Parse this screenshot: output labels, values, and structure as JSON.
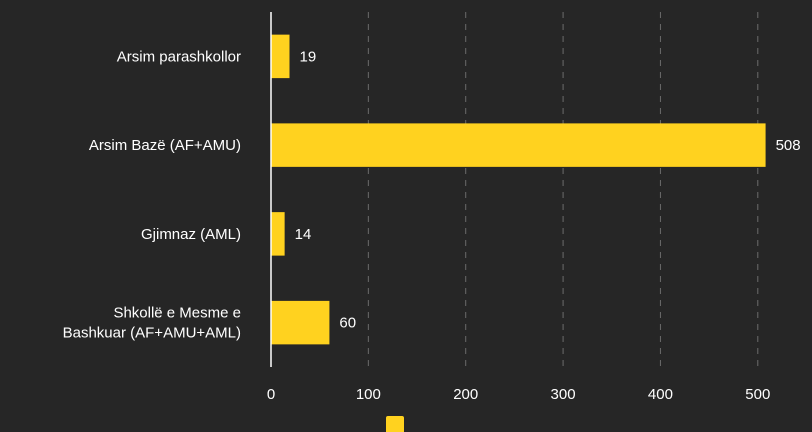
{
  "chart_data": {
    "type": "bar",
    "orientation": "horizontal",
    "categories": [
      [
        "Arsim parashkollor"
      ],
      [
        "Arsim Bazë (AF+AMU)"
      ],
      [
        "Gjimnaz (AML)"
      ],
      [
        "Shkollë e Mesme e",
        "Bashkuar (AF+AMU+AML)"
      ]
    ],
    "values": [
      19,
      508,
      14,
      60
    ],
    "xlim": [
      0,
      530
    ],
    "xticks": [
      0,
      100,
      200,
      300,
      400,
      500
    ],
    "grid": true,
    "legend": "bottom-center",
    "colors": {
      "bar": "#ffd21f",
      "background": "#262626",
      "text": "#ffffff",
      "grid": "#6b6b6b"
    }
  }
}
